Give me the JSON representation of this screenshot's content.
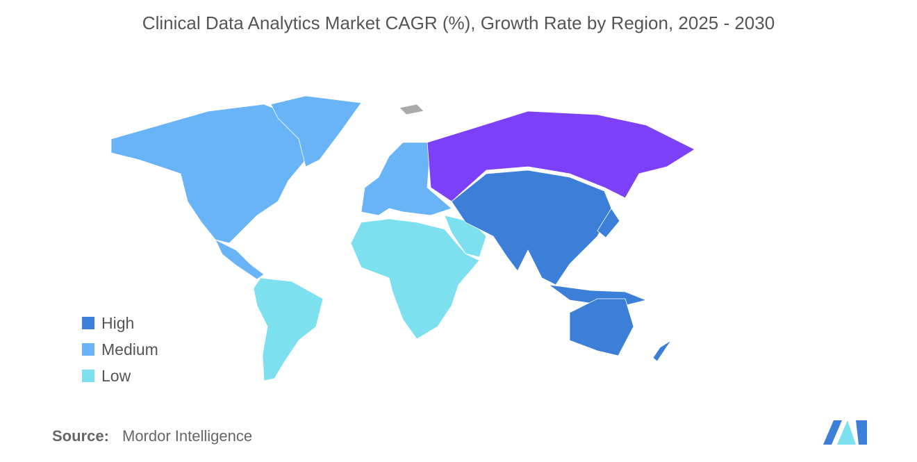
{
  "title": "Clinical Data Analytics Market CAGR (%), Growth Rate by Region, 2025 - 2030",
  "legend": {
    "items": [
      {
        "label": "High",
        "color": "#3b7fd9"
      },
      {
        "label": "Medium",
        "color": "#68b4f6"
      },
      {
        "label": "Low",
        "color": "#7ce0ef"
      }
    ]
  },
  "source": {
    "label": "Source:",
    "text": "Mordor Intelligence"
  }
}
